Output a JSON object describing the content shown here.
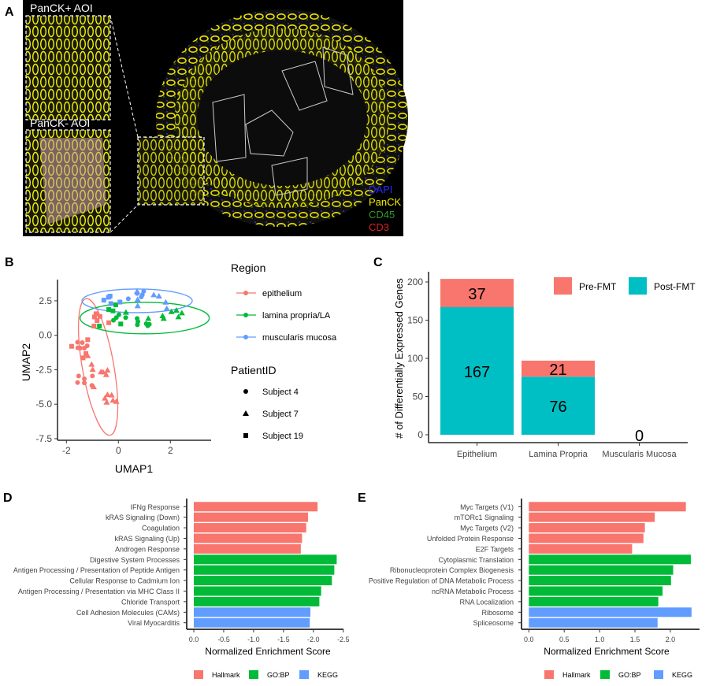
{
  "panel_labels": [
    "A",
    "B",
    "C",
    "D",
    "E"
  ],
  "panel_a": {
    "inset_labels": [
      "PanCK+ AOI",
      "PanCK- AOI"
    ],
    "channels": [
      {
        "name": "DAPI",
        "color": "#2a2aff"
      },
      {
        "name": "PanCK",
        "color": "#f2f200"
      },
      {
        "name": "CD45",
        "color": "#2e9a2e"
      },
      {
        "name": "CD3",
        "color": "#e02020"
      }
    ]
  },
  "chart_data": [
    {
      "type": "scatter",
      "panel": "B",
      "xlabel": "UMAP1",
      "ylabel": "UMAP2",
      "xticks": [
        -2,
        0,
        2
      ],
      "yticks": [
        2.5,
        0.0,
        -2.5,
        -5.0,
        -7.5
      ],
      "ytick_labels": [
        "2.5",
        "0.0",
        "-2.5",
        "-5.0",
        "-7.5"
      ],
      "legend": {
        "region_title": "Region",
        "regions": [
          {
            "name": "epithelium",
            "color": "#f8766d"
          },
          {
            "name": "lamina propria/LA",
            "color": "#00ba38"
          },
          {
            "name": "muscularis mucosa",
            "color": "#619cff"
          }
        ],
        "patient_title": "PatientID",
        "patients": [
          {
            "name": "Subject 4",
            "shape": "circle"
          },
          {
            "name": "Subject 7",
            "shape": "triangle"
          },
          {
            "name": "Subject 19",
            "shape": "square"
          }
        ]
      },
      "points": [
        {
          "r": 0,
          "p": 2,
          "x": -1.8,
          "y": -0.8
        },
        {
          "r": 0,
          "p": 2,
          "x": -1.18,
          "y": -0.32
        },
        {
          "r": 0,
          "p": 2,
          "x": -1.36,
          "y": -1.64
        },
        {
          "r": 0,
          "p": 2,
          "x": -1.25,
          "y": -1.33
        },
        {
          "r": 0,
          "p": 2,
          "x": -0.86,
          "y": 1.56
        },
        {
          "r": 0,
          "p": 2,
          "x": -0.92,
          "y": 1.33
        },
        {
          "r": 0,
          "p": 2,
          "x": -0.71,
          "y": 1.37
        },
        {
          "r": 0,
          "p": 2,
          "x": -0.82,
          "y": 1.07
        },
        {
          "r": 0,
          "p": 2,
          "x": -0.94,
          "y": 0.67
        },
        {
          "r": 0,
          "p": 2,
          "x": -0.37,
          "y": 0.91
        },
        {
          "r": 0,
          "p": 0,
          "x": -1.57,
          "y": -0.5
        },
        {
          "r": 0,
          "p": 0,
          "x": -1.39,
          "y": -0.53
        },
        {
          "r": 0,
          "p": 0,
          "x": -1.56,
          "y": -0.91
        },
        {
          "r": 0,
          "p": 0,
          "x": -1.47,
          "y": -0.93
        },
        {
          "r": 0,
          "p": 0,
          "x": -1.2,
          "y": -0.76
        },
        {
          "r": 0,
          "p": 0,
          "x": -1.31,
          "y": -0.93
        },
        {
          "r": 0,
          "p": 0,
          "x": -1.53,
          "y": -2.95
        },
        {
          "r": 0,
          "p": 0,
          "x": -1.31,
          "y": -3.16
        },
        {
          "r": 0,
          "p": 0,
          "x": -1.57,
          "y": -3.43
        },
        {
          "r": 0,
          "p": 0,
          "x": -1.31,
          "y": -3.45
        },
        {
          "r": 0,
          "p": 0,
          "x": -1.0,
          "y": -2.95
        },
        {
          "r": 0,
          "p": 0,
          "x": -1.02,
          "y": -3.64
        },
        {
          "r": 0,
          "p": 1,
          "x": -1.18,
          "y": -1.49
        },
        {
          "r": 0,
          "p": 1,
          "x": -1.03,
          "y": -2.11
        },
        {
          "r": 0,
          "p": 1,
          "x": -0.99,
          "y": -2.48
        },
        {
          "r": 0,
          "p": 1,
          "x": -0.67,
          "y": -2.65
        },
        {
          "r": 0,
          "p": 1,
          "x": -0.59,
          "y": -2.67
        },
        {
          "r": 0,
          "p": 1,
          "x": -0.42,
          "y": -2.53
        },
        {
          "r": 0,
          "p": 1,
          "x": -0.47,
          "y": -2.86
        },
        {
          "r": 0,
          "p": 1,
          "x": -0.95,
          "y": -3.74
        },
        {
          "r": 0,
          "p": 1,
          "x": -0.42,
          "y": -4.3
        },
        {
          "r": 0,
          "p": 1,
          "x": -0.26,
          "y": -4.34
        },
        {
          "r": 0,
          "p": 1,
          "x": -0.52,
          "y": -4.57
        },
        {
          "r": 0,
          "p": 1,
          "x": -0.45,
          "y": -4.86
        },
        {
          "r": 0,
          "p": 1,
          "x": -0.21,
          "y": -4.72
        },
        {
          "r": 0,
          "p": 1,
          "x": -0.08,
          "y": -4.8
        },
        {
          "r": 1,
          "p": 2,
          "x": -0.37,
          "y": 1.87
        },
        {
          "r": 1,
          "p": 2,
          "x": -0.21,
          "y": 1.77
        },
        {
          "r": 1,
          "p": 2,
          "x": -0.1,
          "y": 2.21
        },
        {
          "r": 1,
          "p": 2,
          "x": -0.73,
          "y": 0.67
        },
        {
          "r": 1,
          "p": 2,
          "x": 0.09,
          "y": 0.82
        },
        {
          "r": 1,
          "p": 0,
          "x": -0.19,
          "y": 1.09
        },
        {
          "r": 1,
          "p": 0,
          "x": -0.08,
          "y": 1.28
        },
        {
          "r": 1,
          "p": 0,
          "x": 0.02,
          "y": 1.5
        },
        {
          "r": 1,
          "p": 0,
          "x": 0.28,
          "y": 1.28
        },
        {
          "r": 1,
          "p": 0,
          "x": 0.72,
          "y": 1.22
        },
        {
          "r": 1,
          "p": 0,
          "x": 0.75,
          "y": 0.99
        },
        {
          "r": 1,
          "p": 0,
          "x": 0.73,
          "y": 0.76
        },
        {
          "r": 1,
          "p": 0,
          "x": 1.07,
          "y": 0.84
        },
        {
          "r": 1,
          "p": 0,
          "x": 1.13,
          "y": 0.69
        },
        {
          "r": 1,
          "p": 0,
          "x": 1.19,
          "y": 0.8
        },
        {
          "r": 1,
          "p": 1,
          "x": 0.29,
          "y": 1.66
        },
        {
          "r": 1,
          "p": 1,
          "x": 1.15,
          "y": 1.22
        },
        {
          "r": 1,
          "p": 1,
          "x": 1.7,
          "y": 1.41
        },
        {
          "r": 1,
          "p": 1,
          "x": 1.74,
          "y": 1.22
        },
        {
          "r": 1,
          "p": 1,
          "x": 2.04,
          "y": 1.71
        },
        {
          "r": 1,
          "p": 1,
          "x": 2.23,
          "y": 1.81
        },
        {
          "r": 1,
          "p": 1,
          "x": 2.31,
          "y": 1.33
        },
        {
          "r": 1,
          "p": 1,
          "x": 2.44,
          "y": 1.62
        },
        {
          "r": 2,
          "p": 2,
          "x": -0.56,
          "y": 2.55
        },
        {
          "r": 2,
          "p": 2,
          "x": -0.38,
          "y": 2.76
        },
        {
          "r": 2,
          "p": 2,
          "x": -0.32,
          "y": 2.84
        },
        {
          "r": 2,
          "p": 2,
          "x": -0.29,
          "y": 2.3
        },
        {
          "r": 2,
          "p": 2,
          "x": 0.06,
          "y": 2.41
        },
        {
          "r": 2,
          "p": 0,
          "x": 0.38,
          "y": 2.65
        },
        {
          "r": 2,
          "p": 0,
          "x": 0.72,
          "y": 3.03
        },
        {
          "r": 2,
          "p": 0,
          "x": 0.88,
          "y": 2.78
        },
        {
          "r": 2,
          "p": 0,
          "x": 0.97,
          "y": 3.18
        },
        {
          "r": 2,
          "p": 0,
          "x": 0.92,
          "y": 2.93
        },
        {
          "r": 2,
          "p": 1,
          "x": 0.72,
          "y": 3.18
        },
        {
          "r": 2,
          "p": 1,
          "x": 0.74,
          "y": 2.59
        },
        {
          "r": 2,
          "p": 1,
          "x": 0.74,
          "y": 2.13
        },
        {
          "r": 2,
          "p": 1,
          "x": 1.36,
          "y": 2.93
        },
        {
          "r": 2,
          "p": 1,
          "x": 1.56,
          "y": 2.84
        },
        {
          "r": 2,
          "p": 1,
          "x": 1.82,
          "y": 2.4
        },
        {
          "r": 2,
          "p": 1,
          "x": 1.86,
          "y": 1.94
        }
      ]
    },
    {
      "type": "bar",
      "panel": "C",
      "stacked": true,
      "ylabel": "# of Differentially Expressed Genes",
      "categories": [
        "Epithelium",
        "Lamina Propria",
        "Muscularis Mucosa"
      ],
      "yticks": [
        0,
        50,
        100,
        150,
        200
      ],
      "ylim": [
        0,
        205
      ],
      "series": [
        {
          "name": "Post-FMT",
          "color": "#00bfc4",
          "values": [
            167,
            76,
            0
          ]
        },
        {
          "name": "Pre-FMT",
          "color": "#f8766d",
          "values": [
            37,
            21,
            0
          ]
        }
      ],
      "data_labels": [
        [
          "167",
          "76",
          "0"
        ],
        [
          "37",
          "21",
          ""
        ]
      ],
      "legend": [
        "Pre-FMT",
        "Post-FMT"
      ],
      "legend_position": "top-right"
    },
    {
      "type": "bar",
      "panel": "D",
      "orientation": "horizontal",
      "xlabel": "Normalized Enrichment Score",
      "xticks": [
        0,
        -0.5,
        -1.0,
        -1.5,
        -2.0,
        -2.5
      ],
      "xtick_labels": [
        "0.0",
        "-0.5",
        "-1.0",
        "-1.5",
        "-2.0",
        "-2.5"
      ],
      "xlim": [
        0,
        -2.5
      ],
      "categories": [
        "IFNg Response",
        "kRAS Signaling (Down)",
        "Coagulation",
        "kRAS Signaling (Up)",
        "Androgen Response",
        "Digestive System Processes",
        "Antigen Processing / Presentation of Peptide Antigen",
        "Cellular Response to Cadmium Ion",
        "Antigen Processing / Presentation via MHC Class II",
        "Chloride Transport",
        "Cell Adhesion Molecules (CAMs)",
        "Viral Myocarditis"
      ],
      "values": [
        -2.07,
        -1.91,
        -1.88,
        -1.81,
        -1.79,
        -2.39,
        -2.35,
        -2.31,
        -2.13,
        -2.1,
        -1.95,
        -1.94
      ],
      "groups": [
        0,
        0,
        0,
        0,
        0,
        1,
        1,
        1,
        1,
        1,
        2,
        2
      ],
      "legend": [
        {
          "name": "Hallmark",
          "color": "#f8766d"
        },
        {
          "name": "GO:BP",
          "color": "#00ba38"
        },
        {
          "name": "KEGG",
          "color": "#619cff"
        }
      ],
      "legend_position": "bottom"
    },
    {
      "type": "bar",
      "panel": "E",
      "orientation": "horizontal",
      "xlabel": "Normalized Enrichment Score",
      "xticks": [
        0,
        0.5,
        1.0,
        1.5,
        2.0
      ],
      "xtick_labels": [
        "0.0",
        "0.5",
        "1.0",
        "1.5",
        "2.0"
      ],
      "xlim": [
        0,
        2.4
      ],
      "categories": [
        "Myc Targets (V1)",
        "mTORc1 Signaling",
        "Myc Targets (V2)",
        "Unfolded Protein Response",
        "E2F Targets",
        "Cytoplasmic Translation",
        "Ribonucleoprotein Complex Biogenesis",
        "Positive Regulation of DNA Metabolic Process",
        "ncRNA Metabolic Process",
        "RNA Localization",
        "Ribosome",
        "Spliceosome"
      ],
      "values": [
        2.22,
        1.78,
        1.64,
        1.62,
        1.46,
        2.29,
        2.04,
        2.01,
        1.89,
        1.83,
        2.3,
        1.82
      ],
      "groups": [
        0,
        0,
        0,
        0,
        0,
        1,
        1,
        1,
        1,
        1,
        2,
        2
      ],
      "legend": [
        {
          "name": "Hallmark",
          "color": "#f8766d"
        },
        {
          "name": "GO:BP",
          "color": "#00ba38"
        },
        {
          "name": "KEGG",
          "color": "#619cff"
        }
      ],
      "legend_position": "bottom"
    }
  ]
}
